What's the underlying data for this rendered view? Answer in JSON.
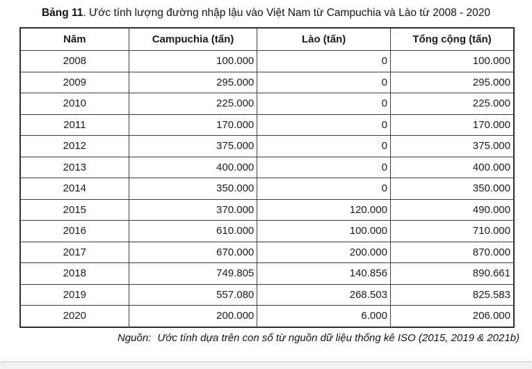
{
  "title": {
    "bold": "Bảng 11",
    "rest": ". Ước tính lượng đường nhập lậu vào Việt Nam từ Campuchia và Lào từ 2008 - 2020"
  },
  "table": {
    "columns": [
      "Năm",
      "Campuchia (tấn)",
      "Lào (tấn)",
      "Tổng cộng (tấn)"
    ],
    "rows": [
      [
        "2008",
        "100.000",
        "0",
        "100.000"
      ],
      [
        "2009",
        "295.000",
        "0",
        "295.000"
      ],
      [
        "2010",
        "225.000",
        "0",
        "225.000"
      ],
      [
        "2011",
        "170.000",
        "0",
        "170.000"
      ],
      [
        "2012",
        "375.000",
        "0",
        "375.000"
      ],
      [
        "2013",
        "400.000",
        "0",
        "400.000"
      ],
      [
        "2014",
        "350.000",
        "0",
        "350.000"
      ],
      [
        "2015",
        "370.000",
        "120.000",
        "490.000"
      ],
      [
        "2016",
        "610.000",
        "100.000",
        "710.000"
      ],
      [
        "2017",
        "670.000",
        "200.000",
        "870.000"
      ],
      [
        "2018",
        "749.805",
        "140.856",
        "890.661"
      ],
      [
        "2019",
        "557.080",
        "268.503",
        "825.583"
      ],
      [
        "2020",
        "200.000",
        "6.000",
        "206.000"
      ]
    ]
  },
  "source_note": {
    "label": "Nguồn:",
    "text": "Ước tính dựa trên con số từ nguồn dữ liệu thống kê ISO (2015, 2019 & 2021b)"
  },
  "colors": {
    "table_border": "#2f2f2f",
    "text": "#121212",
    "bottom_bar_bg": "#f1f1f1",
    "bottom_bar_border": "#c2c2c2"
  }
}
